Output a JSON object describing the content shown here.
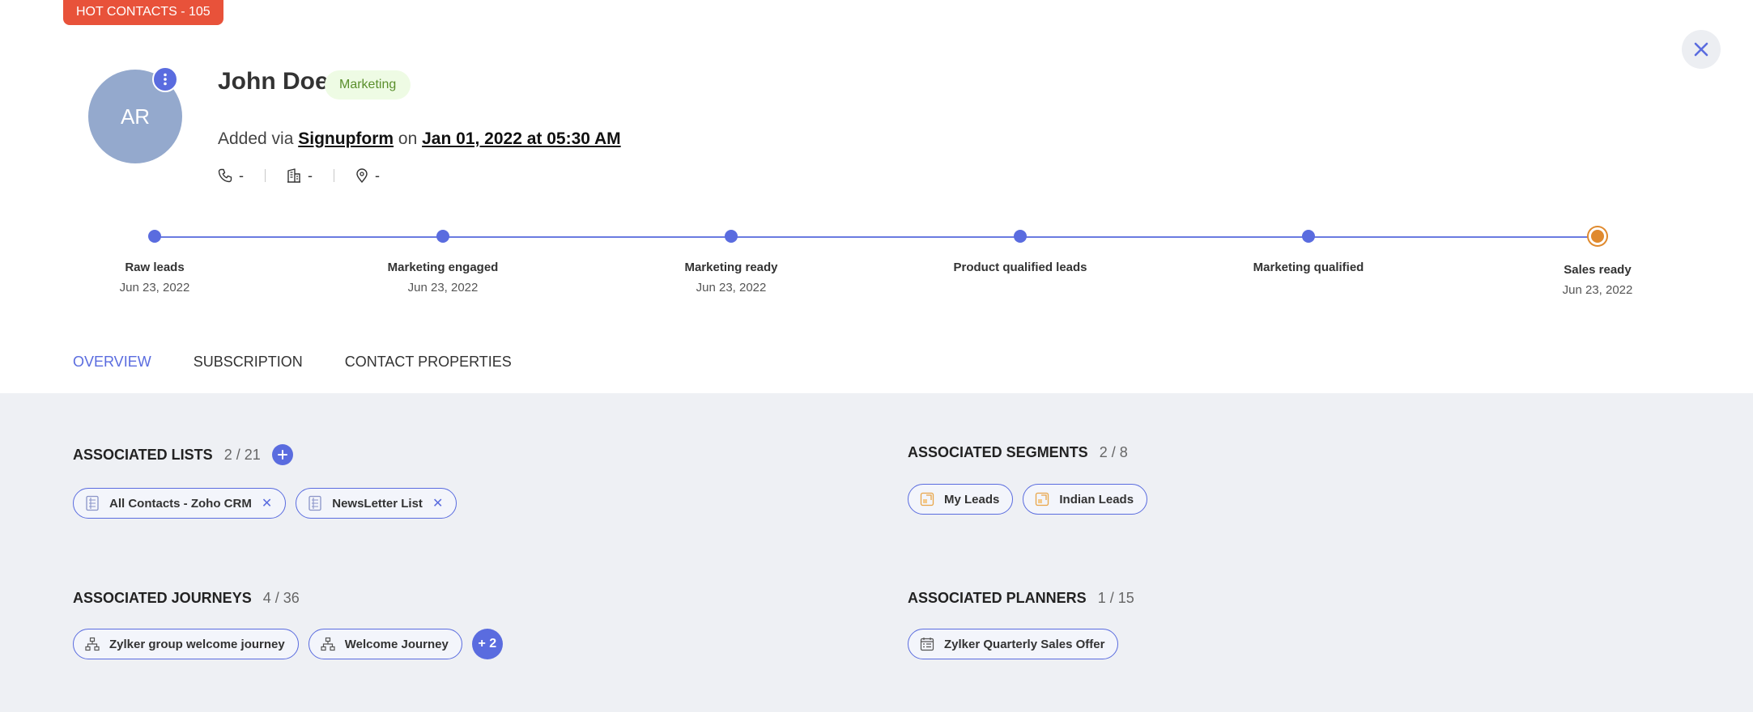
{
  "hot_badge": "HOT CONTACTS - 105",
  "contact": {
    "initials": "AR",
    "name": "John Doe",
    "tag": "Marketing",
    "added_prefix": "Added via",
    "source": "Signupform",
    "added_mid": "on",
    "added_date": "Jan 01, 2022 at 05:30 AM",
    "phone": "-",
    "company": "-",
    "location": "-"
  },
  "stages": [
    {
      "label": "Raw leads",
      "date": "Jun 23, 2022"
    },
    {
      "label": "Marketing engaged",
      "date": "Jun 23, 2022"
    },
    {
      "label": "Marketing ready",
      "date": "Jun 23, 2022"
    },
    {
      "label": "Product qualified leads",
      "date": ""
    },
    {
      "label": "Marketing qualified",
      "date": ""
    },
    {
      "label": "Sales ready",
      "date": "Jun 23, 2022"
    }
  ],
  "tabs": [
    "OVERVIEW",
    "SUBSCRIPTION",
    "CONTACT PROPERTIES"
  ],
  "lists": {
    "title": "ASSOCIATED LISTS",
    "count": "2 / 21",
    "items": [
      "All Contacts - Zoho CRM",
      "NewsLetter List"
    ]
  },
  "segments": {
    "title": "ASSOCIATED SEGMENTS",
    "count": "2 / 8",
    "items": [
      "My Leads",
      "Indian Leads"
    ]
  },
  "journeys": {
    "title": "ASSOCIATED JOURNEYS",
    "count": "4 / 36",
    "items": [
      "Zylker group welcome journey",
      "Welcome Journey"
    ],
    "more": "+ 2"
  },
  "planners": {
    "title": "ASSOCIATED PLANNERS",
    "count": "1 / 15",
    "items": [
      "Zylker Quarterly Sales Offer"
    ]
  },
  "colors": {
    "accent": "#5a6cdf",
    "hot_badge": "#e8523a",
    "avatar": "#94a9cd",
    "final_stage": "#e08a2e",
    "tag_bg": "#eefbe4"
  }
}
